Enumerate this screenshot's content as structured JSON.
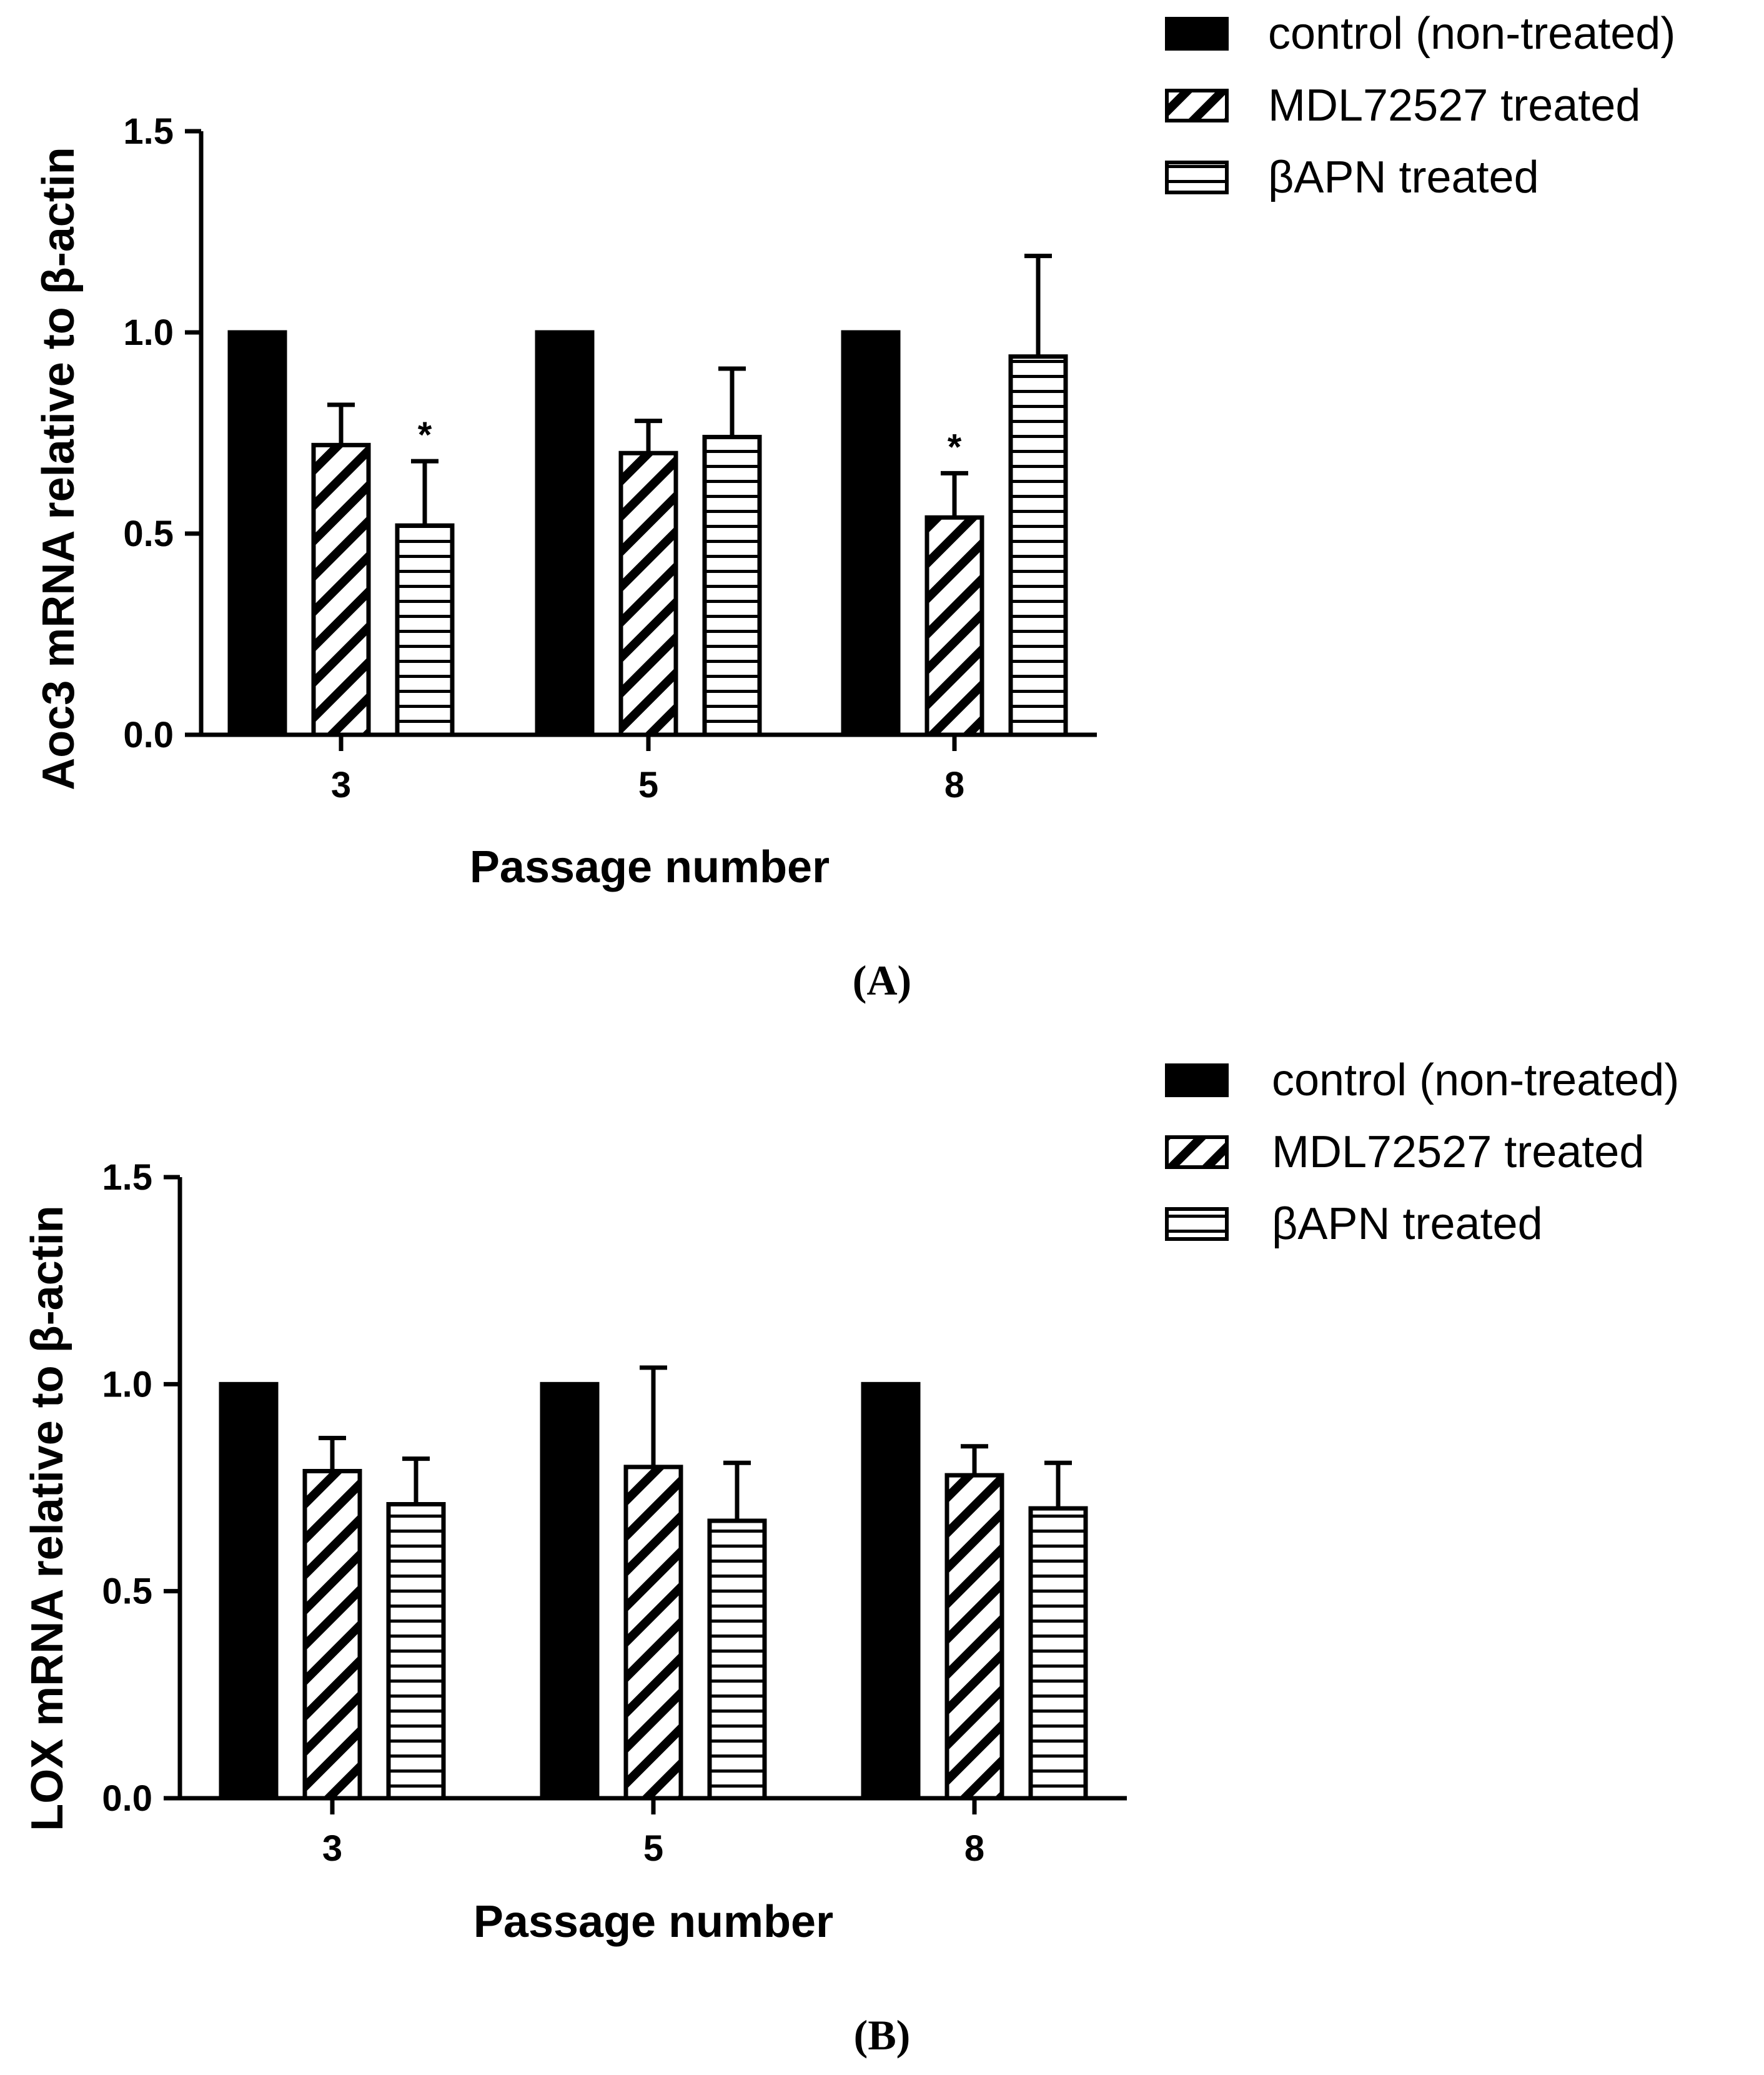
{
  "colors": {
    "ink": "#000000",
    "background": "#ffffff"
  },
  "chart_data": [
    {
      "type": "bar",
      "panel_label": "(A)",
      "xlabel": "Passage number",
      "ylabel": "Aoc3 mRNA relative to β-actin",
      "ylim": [
        0,
        1.5
      ],
      "yticks": [
        "0.0",
        "0.5",
        "1.0",
        "1.5"
      ],
      "categories": [
        "3",
        "5",
        "8"
      ],
      "legend_position": "top-right",
      "series": [
        {
          "name": "control (non-treated)",
          "pattern": "solid",
          "values": [
            1.0,
            1.0,
            1.0
          ],
          "errors": [
            0,
            0,
            0
          ],
          "sig": [
            "",
            "",
            ""
          ]
        },
        {
          "name": "MDL72527 treated",
          "pattern": "diagonal",
          "values": [
            0.72,
            0.7,
            0.54
          ],
          "errors": [
            0.1,
            0.08,
            0.11
          ],
          "sig": [
            "",
            "",
            "*"
          ]
        },
        {
          "name": "βAPN treated",
          "pattern": "horizontal",
          "values": [
            0.52,
            0.74,
            0.94
          ],
          "errors": [
            0.16,
            0.17,
            0.25
          ],
          "sig": [
            "*",
            "",
            ""
          ]
        }
      ]
    },
    {
      "type": "bar",
      "panel_label": "(B)",
      "xlabel": "Passage number",
      "ylabel": "LOX mRNA relative to β-actin",
      "ylim": [
        0,
        1.5
      ],
      "yticks": [
        "0.0",
        "0.5",
        "1.0",
        "1.5"
      ],
      "categories": [
        "3",
        "5",
        "8"
      ],
      "legend_position": "top-right",
      "series": [
        {
          "name": "control (non-treated)",
          "pattern": "solid",
          "values": [
            1.0,
            1.0,
            1.0
          ],
          "errors": [
            0,
            0,
            0
          ],
          "sig": [
            "",
            "",
            ""
          ]
        },
        {
          "name": "MDL72527 treated",
          "pattern": "diagonal",
          "values": [
            0.79,
            0.8,
            0.78
          ],
          "errors": [
            0.08,
            0.24,
            0.07
          ],
          "sig": [
            "",
            "",
            ""
          ]
        },
        {
          "name": "βAPN treated",
          "pattern": "horizontal",
          "values": [
            0.71,
            0.67,
            0.7
          ],
          "errors": [
            0.11,
            0.14,
            0.11
          ],
          "sig": [
            "",
            "",
            ""
          ]
        }
      ]
    }
  ]
}
